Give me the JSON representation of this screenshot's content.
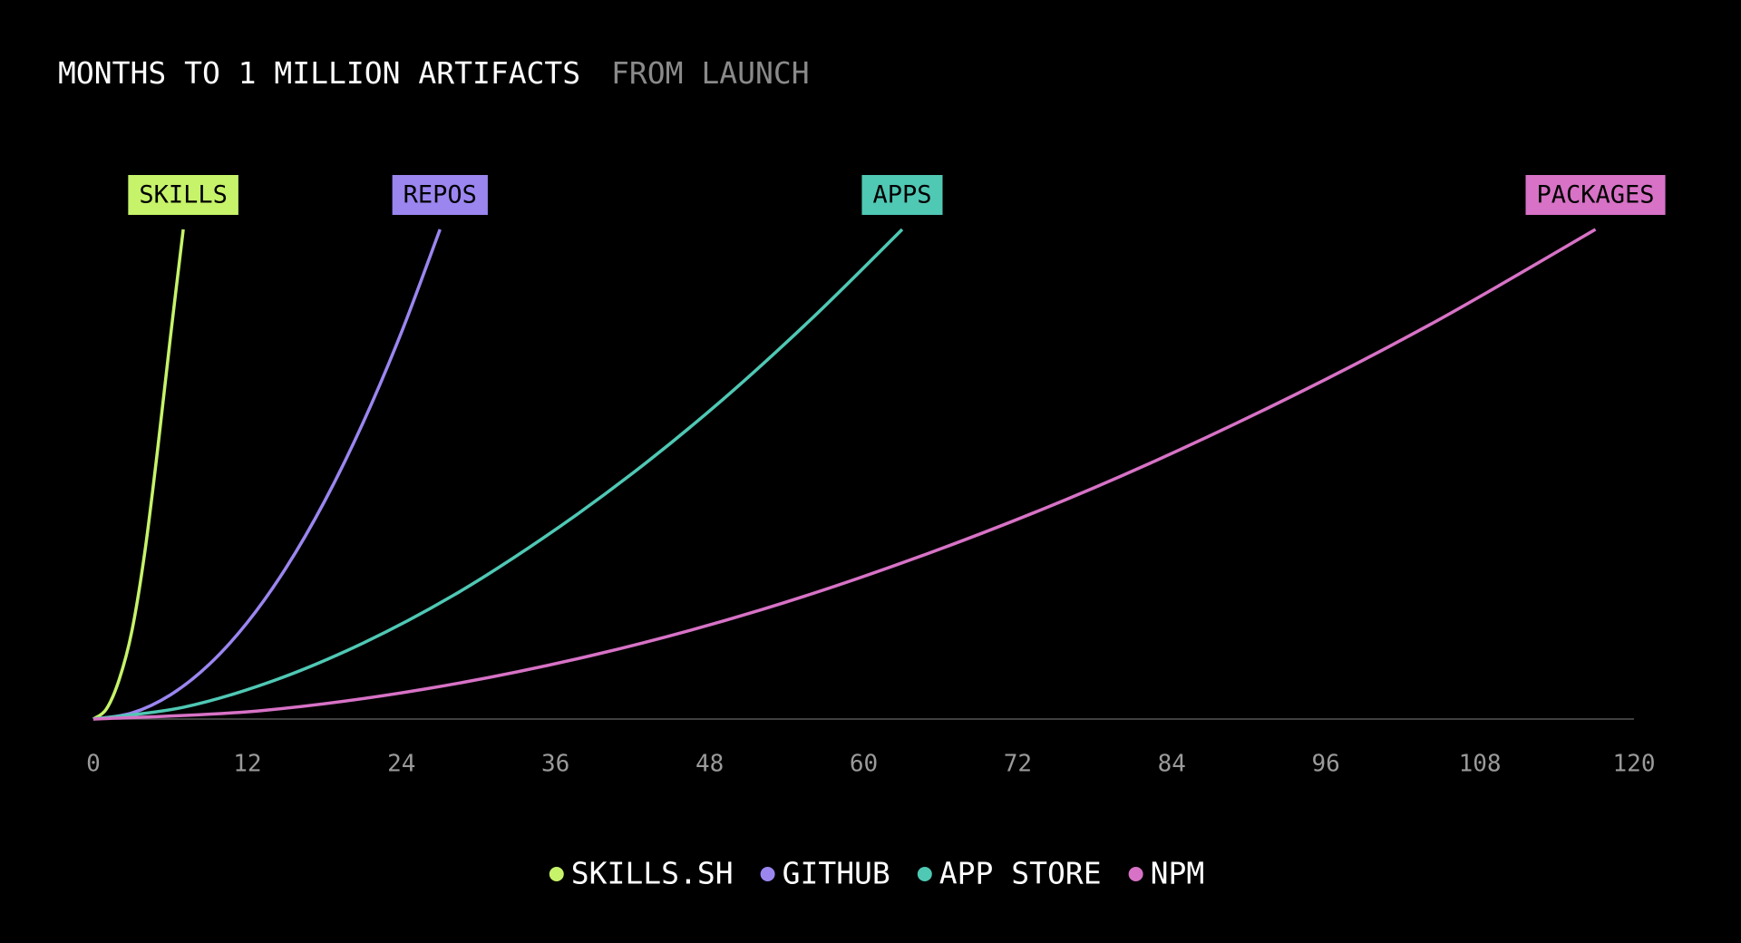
{
  "chart_data": {
    "type": "line",
    "title": "MONTHS TO 1 MILLION ARTIFACTS",
    "subtitle": "FROM LAUNCH",
    "xlim": [
      0,
      120
    ],
    "xticks": [
      0,
      12,
      24,
      36,
      48,
      60,
      72,
      84,
      96,
      108,
      120
    ],
    "ylim": [
      0,
      1000000
    ],
    "series": [
      {
        "name": "SKILLS.SH",
        "label": "SKILLS",
        "color": "#c6f36a",
        "x": [
          0,
          1,
          2,
          3,
          4,
          5,
          6,
          7
        ],
        "values": [
          0,
          20000,
          80000,
          180000,
          340000,
          550000,
          780000,
          1000000
        ]
      },
      {
        "name": "GITHUB",
        "label": "REPOS",
        "color": "#9b86f0",
        "x": [
          0,
          3,
          6,
          9,
          12,
          15,
          18,
          21,
          24,
          27
        ],
        "values": [
          0,
          12346,
          49383,
          111111,
          197531,
          308642,
          444444,
          604938,
          790123,
          1000000
        ]
      },
      {
        "name": "APP STORE",
        "label": "APPS",
        "color": "#4fc8b4",
        "x": [
          0,
          7,
          14,
          21,
          28,
          35,
          42,
          49,
          56,
          63
        ],
        "values": [
          0,
          24000,
          78000,
          155000,
          252000,
          369000,
          502000,
          652000,
          819000,
          1000000
        ]
      },
      {
        "name": "NPM",
        "label": "PACKAGES",
        "color": "#d772c6",
        "x": [
          0,
          13,
          26,
          39,
          52,
          65,
          78,
          91,
          104,
          117
        ],
        "values": [
          0,
          17000,
          62000,
          131000,
          223000,
          338000,
          473000,
          629000,
          804000,
          1000000
        ]
      }
    ]
  }
}
